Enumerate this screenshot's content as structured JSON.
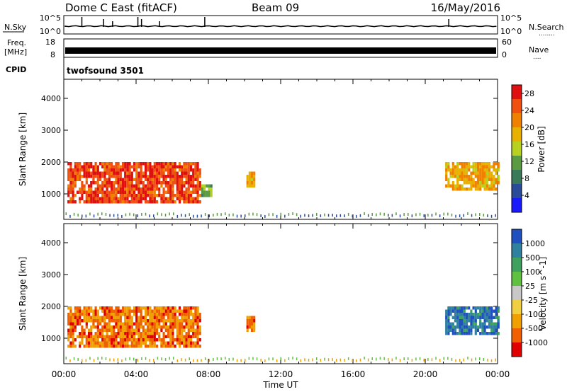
{
  "header": {
    "station": "Dome C East (fitACF)",
    "beam": "Beam 09",
    "date": "16/May/2016"
  },
  "nsky_panel": {
    "left_label": "N.Sky",
    "left_ticks": [
      "10^5",
      "10^0"
    ],
    "right_ticks": [
      "10^5",
      "10^0"
    ],
    "right_label": "N.Search",
    "right_label_suffix": "........"
  },
  "freq_panel": {
    "left_label_line1": "Freq.",
    "left_label_line2": "[MHz]",
    "left_ticks": [
      "18",
      "8"
    ],
    "right_ticks": [
      "60",
      "0"
    ],
    "right_label": "Nave",
    "right_label_suffix": "...."
  },
  "cpid_panel": {
    "label": "CPID",
    "value": "twofsound 3501"
  },
  "colors": {
    "power_scale": [
      "#1a1aff",
      "#2a4a9a",
      "#3a7a58",
      "#5a9a40",
      "#b8d020",
      "#e8b000",
      "#f08000",
      "#f05010",
      "#e01010"
    ],
    "velocity_scale": [
      "#e00000",
      "#f06000",
      "#f0a000",
      "#f0d040",
      "#c8c8c8",
      "#60c040",
      "#40a060",
      "#3080a0",
      "#2050c0"
    ]
  },
  "chart_data": [
    {
      "type": "heatmap",
      "title": "",
      "xlabel": "Time UT",
      "ylabel": "Slant Range [km]",
      "xlim": [
        "00:00",
        "24:00"
      ],
      "ylim": [
        200,
        4600
      ],
      "x_ticks": [
        "00:00",
        "04:00",
        "08:00",
        "12:00",
        "16:00",
        "20:00",
        "00:00"
      ],
      "y_ticks": [
        1000,
        2000,
        3000,
        4000
      ],
      "colorbar": {
        "label": "Power [dB]",
        "ticks": [
          4,
          8,
          12,
          16,
          20,
          24,
          28
        ],
        "range": [
          0,
          30
        ]
      },
      "echo_regions": [
        {
          "t_start": 0.2,
          "t_end": 7.6,
          "range_min": 700,
          "range_max": 2000,
          "level": "high"
        },
        {
          "t_start": 7.6,
          "t_end": 8.2,
          "range_min": 900,
          "range_max": 1300,
          "level": "low"
        },
        {
          "t_start": 10.1,
          "t_end": 10.6,
          "range_min": 1200,
          "range_max": 1700,
          "level": "medium"
        },
        {
          "t_start": 21.1,
          "t_end": 24.0,
          "range_min": 1100,
          "range_max": 2000,
          "level": "medium"
        }
      ]
    },
    {
      "type": "heatmap",
      "title": "",
      "xlabel": "Time UT",
      "ylabel": "Slant Range [km]",
      "xlim": [
        "00:00",
        "24:00"
      ],
      "ylim": [
        200,
        4600
      ],
      "x_ticks": [
        "00:00",
        "04:00",
        "08:00",
        "12:00",
        "16:00",
        "20:00",
        "00:00"
      ],
      "y_ticks": [
        1000,
        2000,
        3000,
        4000
      ],
      "colorbar": {
        "label": "Velocity [m s^-1]",
        "ticks": [
          1000,
          500,
          100,
          25,
          -25,
          -100,
          -500,
          -1000
        ]
      },
      "echo_regions": [
        {
          "t_start": 0.2,
          "t_end": 7.6,
          "range_min": 700,
          "range_max": 2000,
          "level": "-100 to -500"
        },
        {
          "t_start": 10.1,
          "t_end": 10.6,
          "range_min": 1200,
          "range_max": 1700,
          "level": "-100 to -500"
        },
        {
          "t_start": 21.1,
          "t_end": 24.0,
          "range_min": 1100,
          "range_max": 2000,
          "level": "500 to 1000"
        }
      ]
    }
  ]
}
